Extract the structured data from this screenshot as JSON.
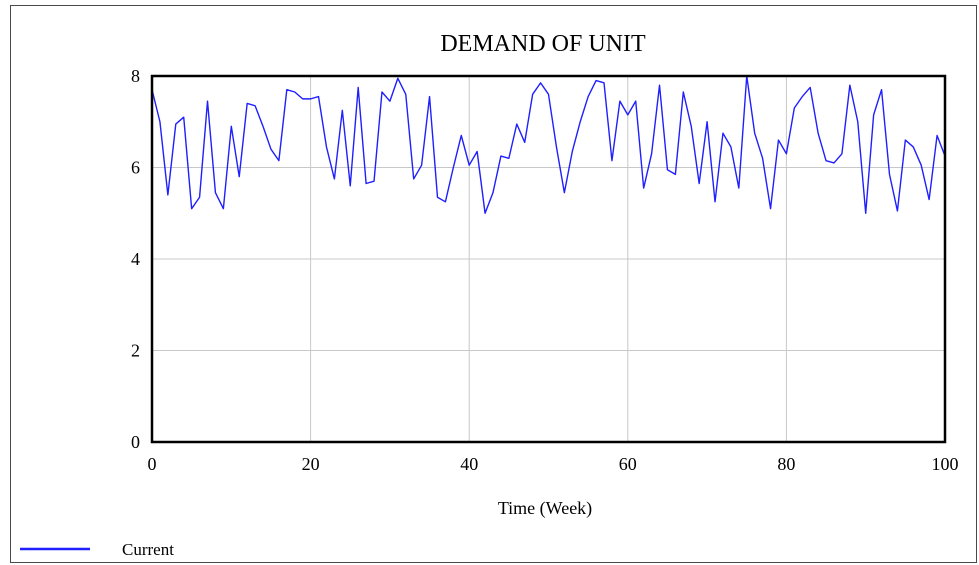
{
  "chart_data": {
    "type": "line",
    "title": "DEMAND OF UNIT",
    "xlabel": "Time (Week)",
    "ylabel": "",
    "xlim": [
      0,
      100
    ],
    "ylim": [
      0,
      8
    ],
    "x_ticks": [
      0,
      20,
      40,
      60,
      80,
      100
    ],
    "y_ticks": [
      0,
      2,
      4,
      6,
      8
    ],
    "grid": true,
    "legend_position": "bottom-left",
    "series": [
      {
        "name": "Current",
        "color": "#1f1fff",
        "x": [
          0,
          1,
          2,
          3,
          4,
          5,
          6,
          7,
          8,
          9,
          10,
          11,
          12,
          13,
          14,
          15,
          16,
          17,
          18,
          19,
          20,
          21,
          22,
          23,
          24,
          25,
          26,
          27,
          28,
          29,
          30,
          31,
          32,
          33,
          34,
          35,
          36,
          37,
          38,
          39,
          40,
          41,
          42,
          43,
          44,
          45,
          46,
          47,
          48,
          49,
          50,
          51,
          52,
          53,
          54,
          55,
          56,
          57,
          58,
          59,
          60,
          61,
          62,
          63,
          64,
          65,
          66,
          67,
          68,
          69,
          70,
          71,
          72,
          73,
          74,
          75,
          76,
          77,
          78,
          79,
          80,
          81,
          82,
          83,
          84,
          85,
          86,
          87,
          88,
          89,
          90,
          91,
          92,
          93,
          94,
          95,
          96,
          97,
          98,
          99,
          100
        ],
        "values": [
          7.7,
          7.0,
          5.4,
          6.95,
          7.1,
          5.1,
          5.35,
          7.45,
          5.45,
          5.1,
          6.9,
          5.8,
          7.4,
          7.35,
          6.9,
          6.4,
          6.15,
          7.7,
          7.65,
          7.5,
          7.5,
          7.55,
          6.45,
          5.75,
          7.25,
          5.6,
          7.75,
          5.65,
          5.7,
          7.65,
          7.45,
          7.95,
          7.6,
          5.75,
          6.05,
          7.55,
          5.35,
          5.25,
          6.0,
          6.7,
          6.05,
          6.35,
          5.0,
          5.45,
          6.25,
          6.2,
          6.95,
          6.55,
          7.6,
          7.85,
          7.6,
          6.45,
          5.45,
          6.35,
          7.0,
          7.55,
          7.9,
          7.85,
          6.15,
          7.45,
          7.15,
          7.45,
          5.55,
          6.3,
          7.8,
          5.95,
          5.85,
          7.65,
          6.9,
          5.65,
          7.0,
          5.25,
          6.75,
          6.45,
          5.55,
          8.0,
          6.75,
          6.2,
          5.1,
          6.6,
          6.3,
          7.3,
          7.55,
          7.75,
          6.75,
          6.15,
          6.1,
          6.3,
          7.8,
          7.0,
          5.0,
          7.15,
          7.7,
          5.85,
          5.05,
          6.6,
          6.45,
          6.05,
          5.3,
          6.7,
          6.25
        ]
      }
    ]
  }
}
